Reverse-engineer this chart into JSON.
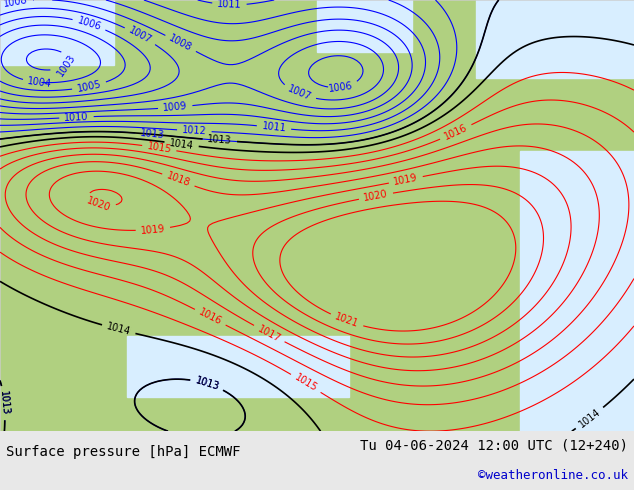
{
  "title_left": "Surface pressure [hPa] ECMWF",
  "title_right": "Tu 04-06-2024 12:00 UTC (12+240)",
  "credit": "©weatheronline.co.uk",
  "bg_map_color": "#b0d080",
  "bg_sea_color": "#d8eeff",
  "border_color": "#888888",
  "footer_bg": "#e8e8e8",
  "footer_text_color": "#000000",
  "credit_color": "#0000cc",
  "contour_blue_color": "#0000ff",
  "contour_black_color": "#000000",
  "contour_red_color": "#ff0000",
  "label_fontsize": 7,
  "footer_fontsize": 10,
  "figsize": [
    6.34,
    4.9
  ],
  "dpi": 100
}
